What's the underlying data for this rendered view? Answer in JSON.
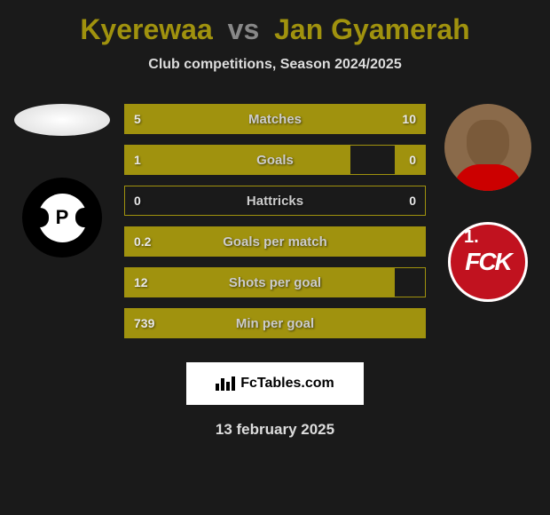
{
  "title": {
    "player1": "Kyerewaa",
    "vs": "vs",
    "player2": "Jan Gyamerah"
  },
  "subtitle": "Club competitions, Season 2024/2025",
  "colors": {
    "accent": "#a0920e",
    "background": "#1a1a1a",
    "text_light": "#ddd",
    "club_right_bg": "#c1121f"
  },
  "stats": [
    {
      "label": "Matches",
      "left_val": "5",
      "right_val": "10",
      "left_pct": 33,
      "right_pct": 67
    },
    {
      "label": "Goals",
      "left_val": "1",
      "right_val": "0",
      "left_pct": 75,
      "right_pct": 10
    },
    {
      "label": "Hattricks",
      "left_val": "0",
      "right_val": "0",
      "left_pct": 0,
      "right_pct": 0
    },
    {
      "label": "Goals per match",
      "left_val": "0.2",
      "right_val": "",
      "left_pct": 100,
      "right_pct": 0
    },
    {
      "label": "Shots per goal",
      "left_val": "12",
      "right_val": "",
      "left_pct": 90,
      "right_pct": 0
    },
    {
      "label": "Min per goal",
      "left_val": "739",
      "right_val": "",
      "left_pct": 100,
      "right_pct": 0
    }
  ],
  "footer": {
    "brand": "FcTables.com",
    "date": "13 february 2025"
  },
  "club_right_label": "FCK",
  "club_right_num": "1."
}
